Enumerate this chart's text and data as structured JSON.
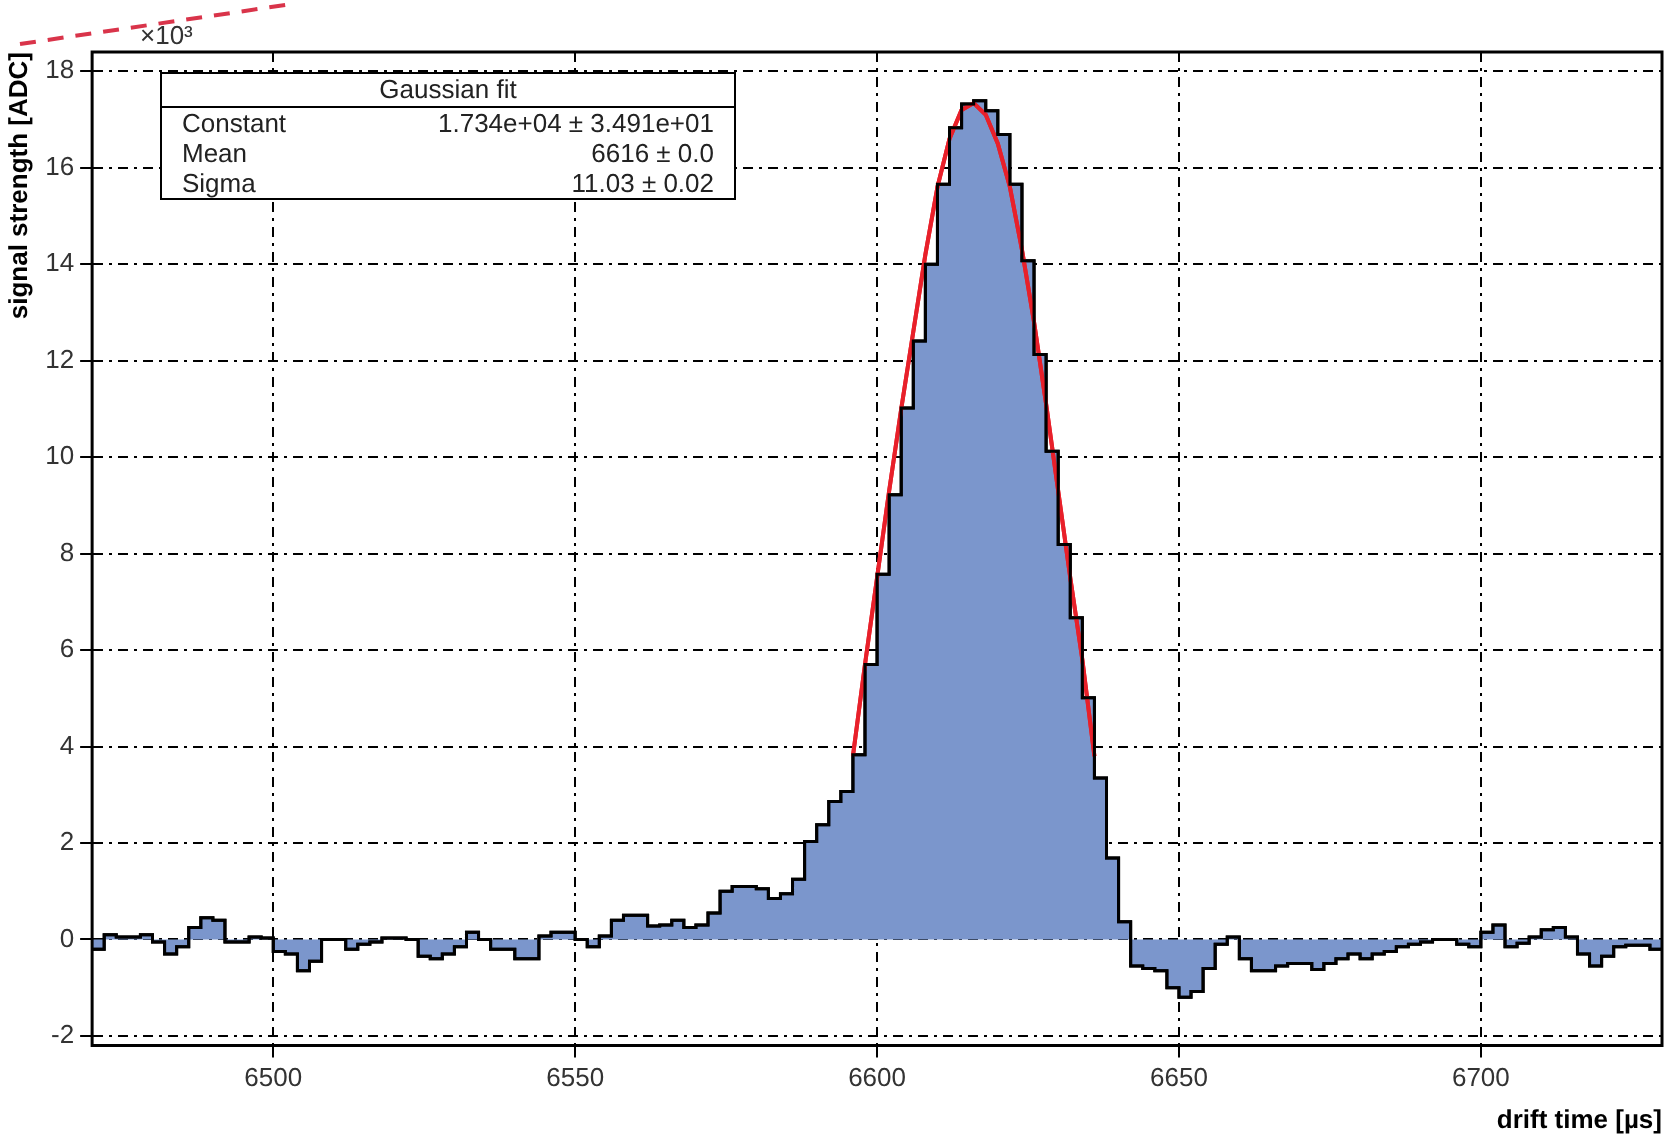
{
  "chart_data": {
    "type": "histogram",
    "xlabel": "drift time [µs]",
    "ylabel": "signal strength [ADC]",
    "annotations": [
      "×10³",
      "Gaussian fit",
      "Constant",
      "1.734e+04 ± 3.491e+01",
      "Mean",
      "6616 ± 0.0",
      "Sigma",
      "11.03 ± 0.02"
    ],
    "xlim": [
      6470,
      6730
    ],
    "xticks": [
      6500,
      6550,
      6600,
      6650,
      6700
    ],
    "ylim": [
      -2.2,
      18.4
    ],
    "yticks": [
      -2,
      0,
      2,
      4,
      6,
      8,
      10,
      12,
      14,
      16,
      18
    ],
    "grid": true,
    "legend": false,
    "series": [
      {
        "color": "#7b96cc",
        "bins": [
          6470,
          6472,
          6474,
          6476,
          6478,
          6480,
          6482,
          6484,
          6486,
          6488,
          6490,
          6492,
          6494,
          6496,
          6498,
          6500,
          6502,
          6504,
          6506,
          6508,
          6510,
          6512,
          6514,
          6516,
          6518,
          6520,
          6522,
          6524,
          6526,
          6528,
          6530,
          6532,
          6534,
          6536,
          6538,
          6540,
          6542,
          6544,
          6546,
          6548,
          6550,
          6552,
          6554,
          6556,
          6558,
          6560,
          6562,
          6564,
          6566,
          6568,
          6570,
          6572,
          6574,
          6576,
          6578,
          6580,
          6582,
          6584,
          6586,
          6588,
          6590,
          6592,
          6594,
          6596,
          6598,
          6600,
          6602,
          6604,
          6606,
          6608,
          6610,
          6612,
          6614,
          6616,
          6618,
          6620,
          6622,
          6624,
          6626,
          6628,
          6630,
          6632,
          6634,
          6636,
          6638,
          6640,
          6642,
          6644,
          6646,
          6648,
          6650,
          6652,
          6654,
          6656,
          6658,
          6660,
          6662,
          6664,
          6666,
          6668,
          6670,
          6672,
          6674,
          6676,
          6678,
          6680,
          6682,
          6684,
          6686,
          6688,
          6690,
          6692,
          6694,
          6696,
          6698,
          6700,
          6702,
          6704,
          6706,
          6708,
          6710,
          6712,
          6714,
          6716,
          6718,
          6720,
          6722,
          6724,
          6726,
          6728,
          6730
        ],
        "values": [
          -0.2,
          0.1,
          0.05,
          0.05,
          0.1,
          -0.05,
          -0.3,
          -0.15,
          0.25,
          0.45,
          0.4,
          -0.05,
          -0.05,
          0.05,
          0.03,
          -0.25,
          -0.3,
          -0.65,
          -0.45,
          0,
          0,
          -0.2,
          -0.1,
          -0.05,
          0.03,
          0.03,
          0,
          -0.35,
          -0.4,
          -0.3,
          -0.15,
          0.15,
          0,
          -0.2,
          -0.2,
          -0.4,
          -0.4,
          0.07,
          0.15,
          0.15,
          0,
          -0.15,
          0.07,
          0.4,
          0.5,
          0.5,
          0.28,
          0.3,
          0.4,
          0.25,
          0.3,
          0.55,
          1.0,
          1.1,
          1.1,
          1.05,
          0.85,
          0.95,
          1.25,
          2.03,
          2.38,
          2.86,
          3.07,
          3.83,
          5.7,
          7.57,
          9.22,
          11.02,
          12.41,
          14.0,
          15.66,
          16.83,
          17.32,
          17.39,
          17.18,
          16.69,
          15.66,
          14.07,
          12.13,
          10.12,
          8.19,
          6.67,
          5.01,
          3.35,
          1.69,
          0.37,
          -0.55,
          -0.6,
          -0.65,
          -1.0,
          -1.2,
          -1.08,
          -0.6,
          -0.1,
          0.05,
          -0.4,
          -0.65,
          -0.65,
          -0.55,
          -0.5,
          -0.5,
          -0.62,
          -0.5,
          -0.4,
          -0.3,
          -0.4,
          -0.3,
          -0.25,
          -0.15,
          -0.1,
          -0.05,
          0,
          0,
          -0.1,
          -0.15,
          0.15,
          0.3,
          -0.15,
          -0.08,
          0.05,
          0.2,
          0.25,
          0.05,
          -0.3,
          -0.55,
          -0.35,
          -0.15,
          -0.12,
          -0.12,
          -0.2
        ]
      },
      {
        "type": "line",
        "color": "#e8202a",
        "x": [
          6596,
          6598,
          6600,
          6602,
          6604,
          6606,
          6608,
          6610,
          6612,
          6614,
          6616,
          6618,
          6620,
          6622,
          6624,
          6626,
          6628,
          6630,
          6632,
          6634,
          6636
        ],
        "values": [
          3.8,
          5.7,
          7.5,
          9.3,
          11.0,
          12.6,
          14.2,
          15.6,
          16.6,
          17.2,
          17.34,
          17.1,
          16.5,
          15.6,
          14.3,
          12.8,
          11.1,
          9.3,
          7.5,
          5.8,
          3.8
        ]
      }
    ]
  }
}
